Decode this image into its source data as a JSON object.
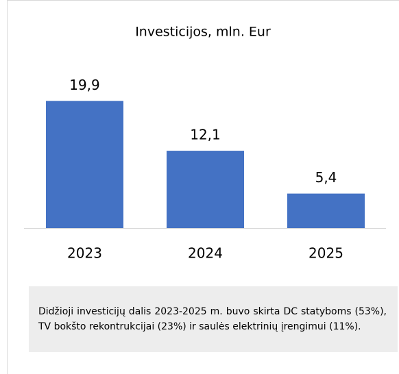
{
  "chart_data": {
    "type": "bar",
    "title": "Investicijos, mln. Eur",
    "categories": [
      "2023",
      "2024",
      "2025"
    ],
    "values": [
      19.9,
      12.1,
      5.4
    ],
    "value_labels": [
      "19,9",
      "12,1",
      "5,4"
    ],
    "color": "#4472c4",
    "ylim": [
      0,
      24
    ],
    "note": "Didžioji investicijų dalis 2023-2025 m. buvo skirta DC statyboms (53%), TV bokšto rekontrukcijai (23%) ir saulės elektrinių įrengimui (11%)."
  }
}
